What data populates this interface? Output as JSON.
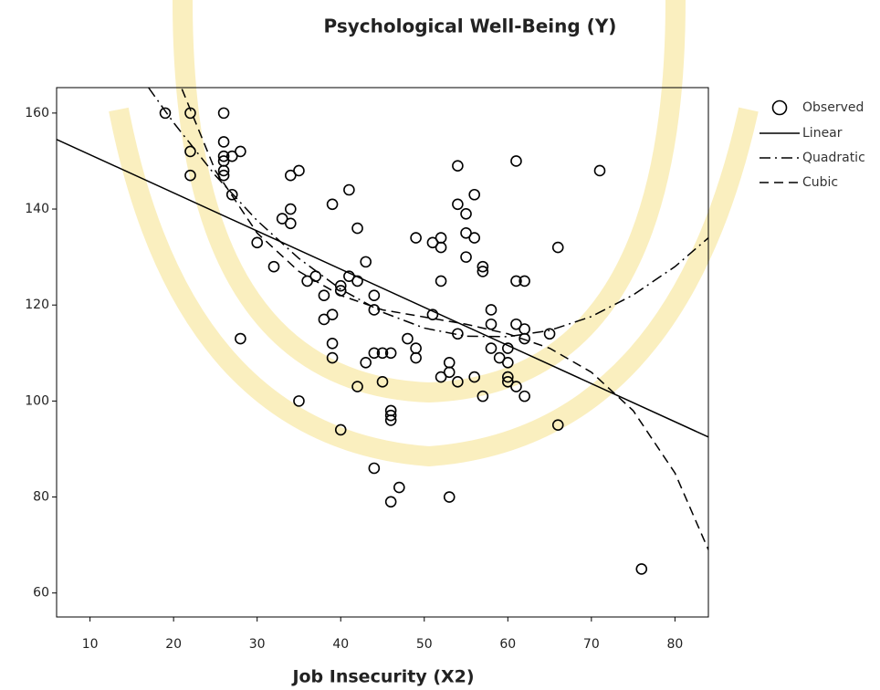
{
  "chart_data": {
    "type": "scatter",
    "title": "Psychological Well-Being (Y)",
    "x_label": "Job Insecurity (X2)",
    "xlim": [
      6,
      84
    ],
    "ylim": [
      55,
      165.3
    ],
    "xticks": [
      10,
      20,
      30,
      40,
      50,
      60,
      70,
      80
    ],
    "yticks": [
      60,
      80,
      100,
      120,
      140,
      160
    ],
    "grid": false,
    "legend": "right",
    "series": [
      {
        "name": "Observed",
        "kind": "points",
        "color": "#000000",
        "x": [
          19,
          22,
          26,
          22,
          22,
          26,
          26,
          26,
          26,
          26,
          27,
          28,
          27,
          30,
          32,
          33,
          34,
          34,
          35,
          34,
          28,
          35,
          36,
          37,
          38,
          38,
          39,
          39,
          39,
          39,
          40,
          40,
          40,
          41,
          41,
          42,
          42,
          42,
          43,
          43,
          44,
          44,
          44,
          44,
          45,
          45,
          46,
          46,
          46,
          46,
          46,
          47,
          48,
          49,
          49,
          49,
          51,
          51,
          52,
          52,
          52,
          52,
          53,
          53,
          53,
          54,
          54,
          54,
          54,
          55,
          55,
          55,
          56,
          56,
          56,
          57,
          57,
          57,
          58,
          58,
          58,
          59,
          60,
          60,
          60,
          60,
          61,
          61,
          61,
          61,
          62,
          62,
          62,
          62,
          65,
          66,
          66,
          71,
          76
        ],
        "values": [
          160,
          160,
          160,
          152,
          147,
          154,
          151,
          150,
          148,
          147,
          151,
          152,
          143,
          133,
          128,
          138,
          140,
          147,
          148,
          137,
          113,
          100,
          125,
          126,
          122,
          117,
          118,
          112,
          109,
          141,
          124,
          123,
          94,
          144,
          126,
          125,
          136,
          103,
          129,
          108,
          122,
          119,
          110,
          86,
          110,
          104,
          110,
          98,
          97,
          96,
          79,
          82,
          113,
          111,
          109,
          134,
          133,
          118,
          134,
          132,
          125,
          105,
          108,
          106,
          80,
          149,
          141,
          114,
          104,
          139,
          135,
          130,
          143,
          134,
          105,
          128,
          127,
          101,
          119,
          116,
          111,
          109,
          111,
          108,
          105,
          104,
          150,
          125,
          116,
          103,
          125,
          115,
          113,
          101,
          114,
          132,
          95,
          148,
          65
        ]
      },
      {
        "name": "Linear",
        "kind": "line",
        "style": "solid",
        "color": "#000000",
        "x": [
          6,
          84
        ],
        "values": [
          154.5,
          92.5
        ]
      },
      {
        "name": "Quadratic",
        "kind": "line",
        "style": "dashdot",
        "color": "#000000",
        "x": [
          17,
          20,
          25,
          30,
          35,
          40,
          45,
          50,
          55,
          60,
          65,
          70,
          75,
          80,
          84
        ],
        "values": [
          165.3,
          158.0,
          147.0,
          137.6,
          129.7,
          123.3,
          118.5,
          115.2,
          113.5,
          113.4,
          114.7,
          117.6,
          122.1,
          128.0,
          134.0
        ]
      },
      {
        "name": "Cubic",
        "kind": "line",
        "style": "dash",
        "color": "#000000",
        "x": [
          21,
          25,
          30,
          35,
          40,
          45,
          50,
          55,
          60,
          65,
          70,
          75,
          80,
          84
        ],
        "values": [
          165,
          148,
          135,
          127,
          122,
          119,
          117.5,
          116,
          114,
          111,
          106,
          98,
          85,
          69
        ]
      }
    ]
  }
}
